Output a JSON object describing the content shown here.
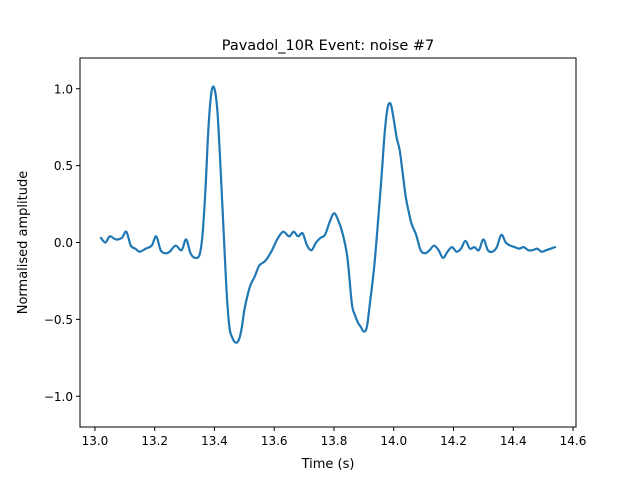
{
  "chart_data": {
    "type": "line",
    "title": "Pavadol_10R Event: noise #7",
    "xlabel": "Time (s)",
    "ylabel": "Normalised amplitude",
    "xlim": [
      12.95,
      14.61
    ],
    "ylim": [
      -1.2,
      1.2
    ],
    "grid": false,
    "x_ticks": [
      13.0,
      13.2,
      13.4,
      13.6,
      13.8,
      14.0,
      14.2,
      14.4,
      14.6
    ],
    "x_tick_labels": [
      "13.0",
      "13.2",
      "13.4",
      "13.6",
      "13.8",
      "14.0",
      "14.2",
      "14.4",
      "14.6"
    ],
    "y_ticks": [
      -1.0,
      -0.5,
      0.0,
      0.5,
      1.0
    ],
    "y_tick_labels": [
      "−1.0",
      "−0.5",
      "0.0",
      "0.5",
      "1.0"
    ],
    "series": [
      {
        "color": "#1f77b4",
        "x": [
          13.02,
          13.035,
          13.05,
          13.07,
          13.09,
          13.105,
          13.12,
          13.135,
          13.15,
          13.17,
          13.19,
          13.205,
          13.22,
          13.235,
          13.25,
          13.27,
          13.29,
          13.305,
          13.32,
          13.335,
          13.35,
          13.36,
          13.37,
          13.38,
          13.39,
          13.4,
          13.41,
          13.42,
          13.43,
          13.44,
          13.45,
          13.46,
          13.47,
          13.48,
          13.49,
          13.5,
          13.51,
          13.52,
          13.535,
          13.55,
          13.57,
          13.59,
          13.61,
          13.63,
          13.65,
          13.665,
          13.68,
          13.695,
          13.71,
          13.725,
          13.74,
          13.755,
          13.77,
          13.785,
          13.8,
          13.815,
          13.83,
          13.845,
          13.86,
          13.87,
          13.88,
          13.89,
          13.9,
          13.91,
          13.92,
          13.935,
          13.95,
          13.96,
          13.97,
          13.98,
          13.99,
          14.0,
          14.01,
          14.02,
          14.03,
          14.04,
          14.05,
          14.06,
          14.075,
          14.09,
          14.105,
          14.12,
          14.135,
          14.15,
          14.165,
          14.18,
          14.195,
          14.21,
          14.225,
          14.24,
          14.255,
          14.27,
          14.285,
          14.3,
          14.315,
          14.33,
          14.345,
          14.36,
          14.375,
          14.39,
          14.405,
          14.42,
          14.435,
          14.45,
          14.465,
          14.48,
          14.495,
          14.51,
          14.525,
          14.54
        ],
        "y": [
          0.03,
          0.0,
          0.04,
          0.02,
          0.03,
          0.07,
          -0.02,
          -0.04,
          -0.06,
          -0.04,
          -0.02,
          0.04,
          -0.05,
          -0.07,
          -0.06,
          -0.02,
          -0.05,
          0.02,
          -0.07,
          -0.1,
          -0.08,
          0.05,
          0.35,
          0.75,
          0.98,
          1.0,
          0.85,
          0.5,
          0.1,
          -0.3,
          -0.55,
          -0.62,
          -0.65,
          -0.64,
          -0.57,
          -0.44,
          -0.35,
          -0.28,
          -0.22,
          -0.15,
          -0.12,
          -0.06,
          0.02,
          0.07,
          0.04,
          0.07,
          0.04,
          0.06,
          -0.02,
          -0.05,
          0.0,
          0.03,
          0.05,
          0.13,
          0.19,
          0.14,
          0.05,
          -0.1,
          -0.4,
          -0.47,
          -0.52,
          -0.55,
          -0.58,
          -0.55,
          -0.4,
          -0.15,
          0.2,
          0.45,
          0.72,
          0.88,
          0.9,
          0.8,
          0.68,
          0.6,
          0.45,
          0.3,
          0.2,
          0.12,
          0.05,
          -0.05,
          -0.07,
          -0.05,
          -0.02,
          -0.05,
          -0.1,
          -0.06,
          -0.03,
          -0.06,
          -0.04,
          0.01,
          -0.04,
          -0.03,
          -0.05,
          0.02,
          -0.05,
          -0.06,
          -0.03,
          0.05,
          0.0,
          -0.02,
          -0.03,
          -0.04,
          -0.03,
          -0.05,
          -0.05,
          -0.04,
          -0.06,
          -0.05,
          -0.04,
          -0.03
        ]
      }
    ]
  }
}
